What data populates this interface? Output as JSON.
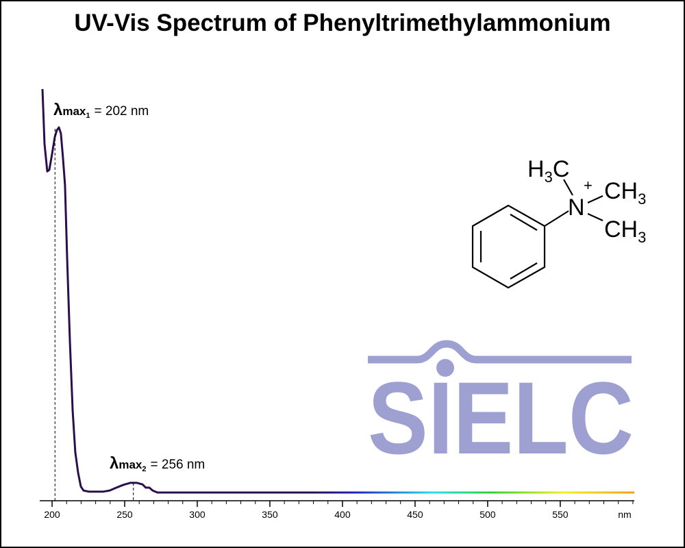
{
  "chart_data": {
    "type": "line",
    "title": "UV-Vis Spectrum of Phenyltrimethylammonium",
    "x_label": "nm",
    "xlim": [
      191.5,
      601
    ],
    "ylim": [
      0,
      1
    ],
    "xticks": [
      200,
      250,
      300,
      350,
      400,
      450,
      500,
      550
    ],
    "xticks_minor": [
      200,
      210,
      220,
      230,
      240,
      250,
      260,
      270,
      280,
      290,
      300,
      310,
      320,
      330,
      340,
      350,
      360,
      370,
      380,
      390,
      400,
      410,
      420,
      430,
      440,
      450,
      460,
      470,
      480,
      490,
      500,
      510,
      520,
      530,
      540,
      550,
      560,
      570,
      580,
      590,
      600
    ],
    "x": [
      193.4,
      194.8,
      196.7,
      198.1,
      200,
      201.9,
      203.3,
      204.7,
      206.1,
      207.5,
      208.9,
      210.4,
      212.3,
      214.2,
      216.0,
      217.9,
      219.8,
      221.7,
      225.5,
      234.9,
      239.6,
      244.3,
      249.1,
      253.8,
      258.5,
      262.3,
      264.6,
      267.0,
      269.3,
      272.6,
      601
    ],
    "series": [
      {
        "name": "Phenyltrimethylammonium",
        "color": "#2b0f4c",
        "values": [
          1.0,
          0.864,
          0.796,
          0.8,
          0.839,
          0.881,
          0.898,
          0.905,
          0.89,
          0.83,
          0.762,
          0.576,
          0.372,
          0.202,
          0.1,
          0.049,
          0.015,
          0.005,
          0.002,
          0.002,
          0.005,
          0.012,
          0.019,
          0.024,
          0.024,
          0.02,
          0.012,
          0.012,
          0.005,
          0,
          0
        ]
      }
    ],
    "annotations": [
      {
        "symbol": "λ",
        "sub": "max",
        "index": "1",
        "text": "= 202 nm",
        "x": 202
      },
      {
        "symbol": "λ",
        "sub": "max",
        "index": "2",
        "text": "= 256 nm",
        "x": 256
      }
    ],
    "watermark": "SIELC",
    "structure": {
      "n": "N",
      "charge": "+",
      "methyls": [
        {
          "parts": [
            "H",
            "3",
            "C"
          ]
        },
        {
          "parts": [
            "CH",
            "3"
          ]
        },
        {
          "parts": [
            "CH",
            "3"
          ]
        }
      ]
    }
  }
}
